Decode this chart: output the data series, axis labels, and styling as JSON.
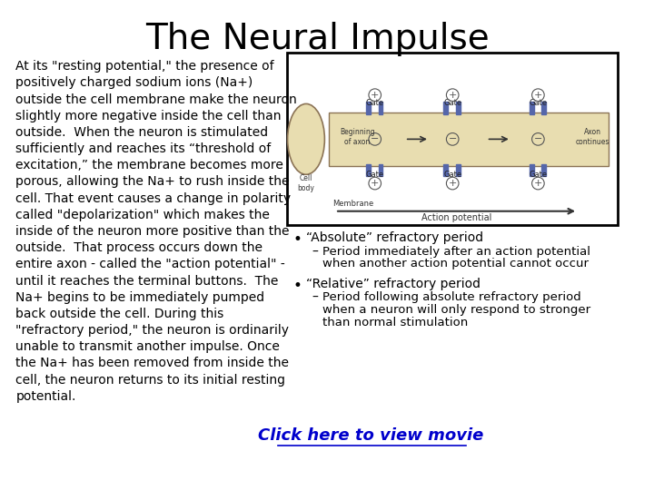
{
  "title": "The Neural Impulse",
  "title_fontsize": 28,
  "background_color": "#ffffff",
  "left_text": "At its \"resting potential,\" the presence of\npositively charged sodium ions (Na+)\noutside the cell membrane make the neuron\nslightly more negative inside the cell than\noutside.  When the neuron is stimulated\nsufficiently and reaches its “threshold of\nexcitation,” the membrane becomes more\nporous, allowing the Na+ to rush inside the\ncell. That event causes a change in polarity\ncalled \"depolarization\" which makes the\ninside of the neuron more positive than the\noutside.  That process occurs down the\nentire axon - called the \"action potential\" -\nuntil it reaches the terminal buttons.  The\nNa+ begins to be immediately pumped\nback outside the cell. During this\n\"refractory period,\" the neuron is ordinarily\nunable to transmit another impulse. Once\nthe Na+ has been removed from inside the\ncell, the neuron returns to its initial resting\npotential.",
  "bullet1_main": "“Absolute” refractory period",
  "bullet1_sub1": "Period immediately after an action potential",
  "bullet1_sub2": "when another action potential cannot occur",
  "bullet2_main": "“Relative” refractory period",
  "bullet2_sub1": "Period following absolute refractory period",
  "bullet2_sub2": "when a neuron will only respond to stronger",
  "bullet2_sub3": "than normal stimulation",
  "link_text": "Click here to view movie",
  "link_color": "#0000cc",
  "text_color": "#000000",
  "font_family": "Georgia",
  "body_fontsize": 10,
  "bullet_fontsize": 10,
  "image_placeholder_color": "#f5f0dc",
  "image_border_color": "#000000",
  "axon_color": "#e8ddb0",
  "gate_color": "#5566aa",
  "arrow_color": "#333333"
}
